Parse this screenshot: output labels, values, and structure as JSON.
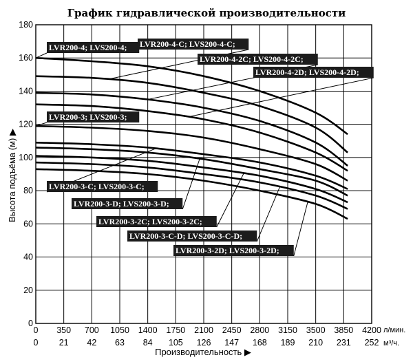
{
  "chart_data": {
    "type": "line",
    "title": "График гидравлической производительности",
    "xlabel": "Производительность ▶",
    "ylabel": "Высота подъёма (м) ▶",
    "x_ticks": [
      0,
      350,
      700,
      1050,
      1400,
      1750,
      2100,
      2450,
      2800,
      3150,
      3500,
      3850,
      4200
    ],
    "x_unit": "л/мин.",
    "x2_ticks": [
      0,
      21,
      42,
      63,
      84,
      105,
      126,
      147,
      168,
      189,
      210,
      231,
      252
    ],
    "x2_unit": "м³/ч.",
    "y_ticks": [
      0,
      20,
      40,
      60,
      80,
      100,
      120,
      140,
      160,
      180
    ],
    "xlim": [
      0,
      4200
    ],
    "ylim": [
      0,
      180
    ],
    "grid": true,
    "series": [
      {
        "name": "LVR200-4; LVS200-4;",
        "x": [
          0,
          700,
          1400,
          2100,
          2800,
          3500,
          3900
        ],
        "y": [
          160,
          158,
          155,
          149,
          140,
          127,
          114
        ]
      },
      {
        "name": "LVR200-4-C; LVS200-4-C;",
        "x": [
          0,
          700,
          1400,
          2100,
          2800,
          3500,
          3900
        ],
        "y": [
          149,
          148,
          145,
          139,
          131,
          118,
          103
        ]
      },
      {
        "name": "LVR200-4-2C; LVS200-4-2C;",
        "x": [
          0,
          700,
          1400,
          2100,
          2800,
          3500,
          3900
        ],
        "y": [
          139,
          138,
          135,
          130,
          122,
          109,
          95
        ]
      },
      {
        "name": "LVR200-4-2D; LVS200-4-2D;",
        "x": [
          0,
          700,
          1400,
          2100,
          2800,
          3500,
          3900
        ],
        "y": [
          132,
          131,
          128,
          123,
          115,
          103,
          92
        ]
      },
      {
        "name": "LVR200-3; LVS200-3;",
        "x": [
          0,
          700,
          1400,
          2100,
          2800,
          3500,
          3900
        ],
        "y": [
          119,
          118,
          116,
          112,
          105,
          96,
          86
        ]
      },
      {
        "name": "LVR200-3-C; LVS200-3-C;",
        "x": [
          0,
          700,
          1400,
          2100,
          2800,
          3500,
          3900
        ],
        "y": [
          109,
          108,
          106,
          102,
          97,
          89,
          81
        ]
      },
      {
        "name": "LVR200-3-D; LVS200-3-D;",
        "x": [
          0,
          700,
          1400,
          2100,
          2800,
          3500,
          3900
        ],
        "y": [
          106,
          105,
          103,
          99,
          93,
          86,
          77
        ]
      },
      {
        "name": "LVR200-3-2C; LVS200-3-2C;",
        "x": [
          0,
          700,
          1400,
          2100,
          2800,
          3500,
          3900
        ],
        "y": [
          101,
          100,
          98,
          94,
          89,
          81,
          73
        ]
      },
      {
        "name": "LVR200-3-C-D; LVS200-3-C-D;",
        "x": [
          0,
          700,
          1400,
          2100,
          2800,
          3500,
          3900
        ],
        "y": [
          97,
          96,
          94,
          90,
          85,
          77,
          69
        ]
      },
      {
        "name": "LVR200-3-2D; LVS200-3-2D;",
        "x": [
          0,
          700,
          1400,
          2100,
          2800,
          3500,
          3900
        ],
        "y": [
          93,
          92,
          90,
          86,
          80,
          72,
          63
        ]
      }
    ],
    "annotations": [
      {
        "text": "LVR200-4; LVS200-4;",
        "series": 0
      },
      {
        "text": "LVR200-4-C; LVS200-4-C;",
        "series": 1
      },
      {
        "text": "LVR200-4-2C; LVS200-4-2C;",
        "series": 2
      },
      {
        "text": "LVR200-4-2D; LVS200-4-2D;",
        "series": 3
      },
      {
        "text": "LVR200-3; LVS200-3;",
        "series": 4
      },
      {
        "text": "LVR200-3-C; LVS200-3-C;",
        "series": 5
      },
      {
        "text": "LVR200-3-D; LVS200-3-D;",
        "series": 6
      },
      {
        "text": "LVR200-3-2C; LVS200-3-2C;",
        "series": 7
      },
      {
        "text": "LVR200-3-C-D; LVS200-3-C-D;",
        "series": 8
      },
      {
        "text": "LVR200-3-2D; LVS200-3-2D;",
        "series": 9
      }
    ]
  }
}
